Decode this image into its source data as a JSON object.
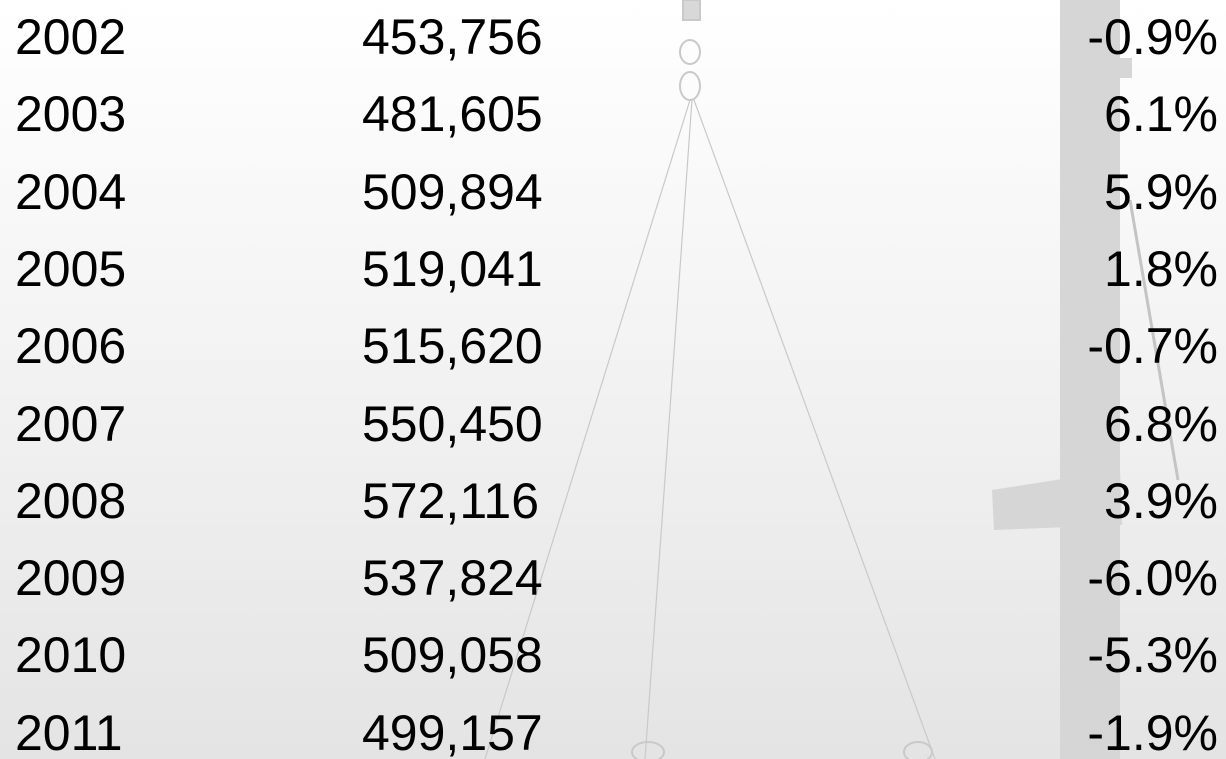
{
  "table": {
    "rows": [
      [
        "2002",
        "453,756",
        "-0.9%"
      ],
      [
        "2003",
        "481,605",
        "6.1%"
      ],
      [
        "2004",
        "509,894",
        "5.9%"
      ],
      [
        "2005",
        "519,041",
        "1.8%"
      ],
      [
        "2006",
        "515,620",
        "-0.7%"
      ],
      [
        "2007",
        "550,450",
        "6.8%"
      ],
      [
        "2008",
        "572,116",
        "3.9%"
      ],
      [
        "2009",
        "537,824",
        "-6.0%"
      ],
      [
        "2010",
        "509,058",
        "-5.3%"
      ],
      [
        "2011",
        "499,157",
        "-1.9%"
      ]
    ]
  }
}
